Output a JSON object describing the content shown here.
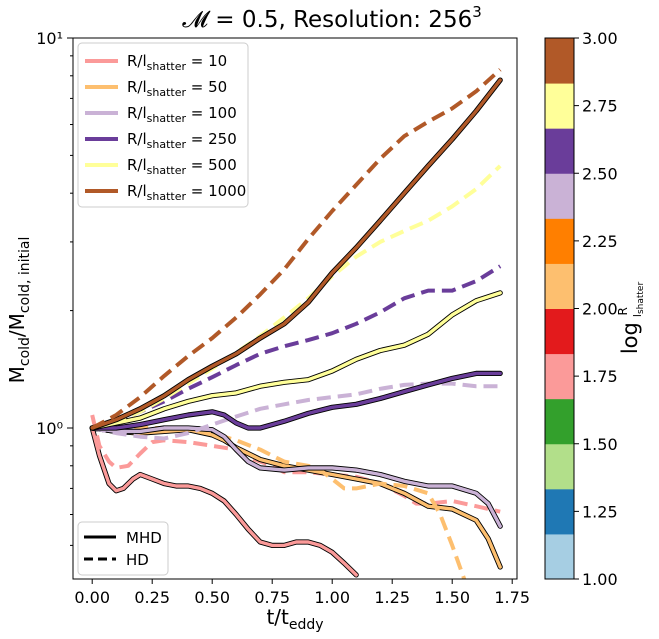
{
  "chart_data": {
    "type": "line",
    "title": "𝓜 = 0.5, Resolution: 256³",
    "xlabel": "t/t_eddy",
    "ylabel": "M_cold/M_cold, initial",
    "xlim": [
      -0.08,
      1.77
    ],
    "ylim": [
      0.41,
      10
    ],
    "yscale": "log",
    "xticks": [
      0.0,
      0.25,
      0.5,
      0.75,
      1.0,
      1.25,
      1.5,
      1.75
    ],
    "xtick_labels": [
      "0.00",
      "0.25",
      "0.50",
      "0.75",
      "1.00",
      "1.25",
      "1.50",
      "1.75"
    ],
    "yticks": [
      1,
      10
    ],
    "ytick_labels": [
      "10⁰",
      "10¹"
    ],
    "grid": false,
    "legend_series": {
      "placement": "upper-left",
      "entries": [
        {
          "label": "R/l_shatter = 10",
          "color": "#fb9a99"
        },
        {
          "label": "R/l_shatter = 50",
          "color": "#fdbf6f"
        },
        {
          "label": "R/l_shatter = 100",
          "color": "#cab2d6"
        },
        {
          "label": "R/l_shatter = 250",
          "color": "#6a3d9a"
        },
        {
          "label": "R/l_shatter = 500",
          "color": "#ffff99"
        },
        {
          "label": "R/l_shatter = 1000",
          "color": "#b15928"
        }
      ]
    },
    "legend_style": {
      "placement": "lower-left",
      "entries": [
        {
          "label": "MHD",
          "dash": "solid"
        },
        {
          "label": "HD",
          "dash": "dashed"
        }
      ]
    },
    "colorbar": {
      "label": "log R/l_shatter",
      "range": [
        1.0,
        3.0
      ],
      "tick_labels": [
        "1.00",
        "1.25",
        "1.50",
        "1.75",
        "2.00",
        "2.25",
        "2.50",
        "2.75",
        "3.00"
      ],
      "colors": [
        "#a6cee3",
        "#1f78b4",
        "#b2df8a",
        "#33a02c",
        "#fb9a99",
        "#e31a1c",
        "#fdbf6f",
        "#ff7f00",
        "#cab2d6",
        "#6a3d9a",
        "#ffff99",
        "#b15928"
      ]
    },
    "series": [
      {
        "name": "R/l_shatter = 10 (MHD)",
        "color": "#fb9a99",
        "dash": "solid",
        "x": [
          0.0,
          0.03,
          0.07,
          0.1,
          0.13,
          0.17,
          0.2,
          0.25,
          0.3,
          0.35,
          0.4,
          0.45,
          0.5,
          0.55,
          0.6,
          0.65,
          0.7,
          0.75,
          0.8,
          0.85,
          0.9,
          0.95,
          1.0,
          1.05,
          1.1
        ],
        "y": [
          1.0,
          0.85,
          0.72,
          0.69,
          0.7,
          0.74,
          0.76,
          0.74,
          0.72,
          0.71,
          0.71,
          0.7,
          0.68,
          0.65,
          0.6,
          0.55,
          0.51,
          0.5,
          0.5,
          0.51,
          0.51,
          0.5,
          0.48,
          0.45,
          0.42
        ]
      },
      {
        "name": "R/l_shatter = 10 (HD)",
        "color": "#fb9a99",
        "dash": "dashed",
        "x": [
          0.0,
          0.03,
          0.07,
          0.1,
          0.15,
          0.2,
          0.25,
          0.3,
          0.4,
          0.5,
          0.6,
          0.65,
          0.7,
          0.75,
          0.8,
          0.9,
          1.0,
          1.1,
          1.2,
          1.3,
          1.35,
          1.4,
          1.5,
          1.6,
          1.7
        ],
        "y": [
          1.08,
          0.9,
          0.82,
          0.79,
          0.8,
          0.86,
          0.92,
          0.93,
          0.92,
          0.9,
          0.88,
          0.84,
          0.82,
          0.8,
          0.77,
          0.77,
          0.76,
          0.75,
          0.72,
          0.67,
          0.64,
          0.64,
          0.65,
          0.63,
          0.61
        ]
      },
      {
        "name": "R/l_shatter = 50 (MHD)",
        "color": "#fdbf6f",
        "dash": "solid",
        "x": [
          0.0,
          0.1,
          0.2,
          0.3,
          0.4,
          0.5,
          0.55,
          0.6,
          0.7,
          0.8,
          0.9,
          1.0,
          1.1,
          1.2,
          1.3,
          1.4,
          1.5,
          1.6,
          1.65,
          1.7
        ],
        "y": [
          1.0,
          0.98,
          0.97,
          0.98,
          0.99,
          0.96,
          0.93,
          0.89,
          0.83,
          0.8,
          0.78,
          0.76,
          0.74,
          0.72,
          0.68,
          0.63,
          0.62,
          0.58,
          0.52,
          0.44
        ]
      },
      {
        "name": "R/l_shatter = 50 (HD)",
        "color": "#fdbf6f",
        "dash": "dashed",
        "x": [
          0.0,
          0.1,
          0.2,
          0.3,
          0.4,
          0.5,
          0.6,
          0.7,
          0.8,
          0.9,
          0.95,
          1.0,
          1.05,
          1.1,
          1.2,
          1.3,
          1.4,
          1.45,
          1.5,
          1.55,
          1.6
        ],
        "y": [
          1.0,
          1.0,
          1.0,
          1.0,
          0.99,
          0.97,
          0.93,
          0.88,
          0.82,
          0.8,
          0.78,
          0.74,
          0.7,
          0.7,
          0.72,
          0.71,
          0.68,
          0.6,
          0.5,
          0.41,
          0.3
        ]
      },
      {
        "name": "R/l_shatter = 100 (MHD)",
        "color": "#cab2d6",
        "dash": "solid",
        "x": [
          0.0,
          0.1,
          0.2,
          0.3,
          0.4,
          0.5,
          0.55,
          0.6,
          0.65,
          0.7,
          0.8,
          0.9,
          1.0,
          1.1,
          1.2,
          1.3,
          1.4,
          1.5,
          1.6,
          1.65,
          1.7
        ],
        "y": [
          1.0,
          0.98,
          0.98,
          1.0,
          1.0,
          0.99,
          0.95,
          0.88,
          0.82,
          0.79,
          0.78,
          0.79,
          0.79,
          0.78,
          0.76,
          0.73,
          0.71,
          0.71,
          0.68,
          0.64,
          0.56
        ]
      },
      {
        "name": "R/l_shatter = 100 (HD)",
        "color": "#cab2d6",
        "dash": "dashed",
        "x": [
          0.0,
          0.1,
          0.2,
          0.3,
          0.4,
          0.5,
          0.6,
          0.7,
          0.8,
          0.9,
          1.0,
          1.1,
          1.2,
          1.3,
          1.4,
          1.5,
          1.6,
          1.7
        ],
        "y": [
          1.0,
          0.97,
          0.95,
          0.94,
          0.97,
          1.02,
          1.07,
          1.12,
          1.15,
          1.18,
          1.2,
          1.22,
          1.26,
          1.29,
          1.3,
          1.3,
          1.28,
          1.28
        ]
      },
      {
        "name": "R/l_shatter = 250 (MHD)",
        "color": "#6a3d9a",
        "dash": "solid",
        "x": [
          0.0,
          0.1,
          0.2,
          0.3,
          0.4,
          0.5,
          0.55,
          0.6,
          0.65,
          0.7,
          0.8,
          0.9,
          1.0,
          1.1,
          1.2,
          1.3,
          1.4,
          1.5,
          1.6,
          1.7
        ],
        "y": [
          1.0,
          1.0,
          1.02,
          1.05,
          1.08,
          1.1,
          1.08,
          1.03,
          1.0,
          1.0,
          1.04,
          1.09,
          1.13,
          1.15,
          1.19,
          1.24,
          1.29,
          1.34,
          1.38,
          1.38
        ]
      },
      {
        "name": "R/l_shatter = 250 (HD)",
        "color": "#6a3d9a",
        "dash": "dashed",
        "x": [
          0.0,
          0.1,
          0.2,
          0.3,
          0.4,
          0.5,
          0.6,
          0.7,
          0.8,
          0.9,
          1.0,
          1.1,
          1.2,
          1.3,
          1.4,
          1.5,
          1.6,
          1.7
        ],
        "y": [
          1.0,
          1.04,
          1.1,
          1.17,
          1.26,
          1.35,
          1.45,
          1.55,
          1.62,
          1.68,
          1.75,
          1.85,
          1.98,
          2.15,
          2.25,
          2.25,
          2.38,
          2.6
        ]
      },
      {
        "name": "R/l_shatter = 500 (MHD)",
        "color": "#ffff99",
        "dash": "solid",
        "x": [
          0.0,
          0.1,
          0.2,
          0.3,
          0.4,
          0.5,
          0.6,
          0.7,
          0.8,
          0.9,
          1.0,
          1.1,
          1.2,
          1.3,
          1.4,
          1.5,
          1.6,
          1.7
        ],
        "y": [
          1.0,
          1.03,
          1.06,
          1.12,
          1.17,
          1.21,
          1.23,
          1.28,
          1.31,
          1.33,
          1.4,
          1.5,
          1.58,
          1.63,
          1.74,
          1.95,
          2.12,
          2.22
        ]
      },
      {
        "name": "R/l_shatter = 500 (HD)",
        "color": "#ffff99",
        "dash": "dashed",
        "x": [
          0.0,
          0.1,
          0.2,
          0.3,
          0.4,
          0.5,
          0.6,
          0.7,
          0.8,
          0.9,
          1.0,
          1.1,
          1.2,
          1.3,
          1.4,
          1.5,
          1.6,
          1.7
        ],
        "y": [
          1.0,
          1.04,
          1.1,
          1.19,
          1.3,
          1.42,
          1.56,
          1.72,
          1.92,
          2.15,
          2.45,
          2.75,
          3.0,
          3.2,
          3.4,
          3.7,
          4.1,
          4.7
        ]
      },
      {
        "name": "R/l_shatter = 1000 (MHD)",
        "color": "#b15928",
        "dash": "solid",
        "x": [
          0.0,
          0.1,
          0.2,
          0.3,
          0.4,
          0.5,
          0.6,
          0.7,
          0.8,
          0.9,
          1.0,
          1.1,
          1.2,
          1.3,
          1.4,
          1.5,
          1.6,
          1.7
        ],
        "y": [
          1.0,
          1.05,
          1.12,
          1.21,
          1.33,
          1.44,
          1.55,
          1.7,
          1.85,
          2.1,
          2.5,
          2.9,
          3.4,
          4.0,
          4.7,
          5.5,
          6.5,
          7.8
        ]
      },
      {
        "name": "R/l_shatter = 1000 (HD)",
        "color": "#b15928",
        "dash": "dashed",
        "x": [
          0.0,
          0.1,
          0.2,
          0.3,
          0.4,
          0.5,
          0.6,
          0.7,
          0.8,
          0.9,
          1.0,
          1.1,
          1.2,
          1.3,
          1.4,
          1.5,
          1.6,
          1.7
        ],
        "y": [
          1.0,
          1.08,
          1.2,
          1.36,
          1.53,
          1.7,
          1.92,
          2.2,
          2.55,
          3.05,
          3.6,
          4.2,
          4.9,
          5.6,
          6.1,
          6.6,
          7.3,
          8.3
        ]
      }
    ]
  }
}
